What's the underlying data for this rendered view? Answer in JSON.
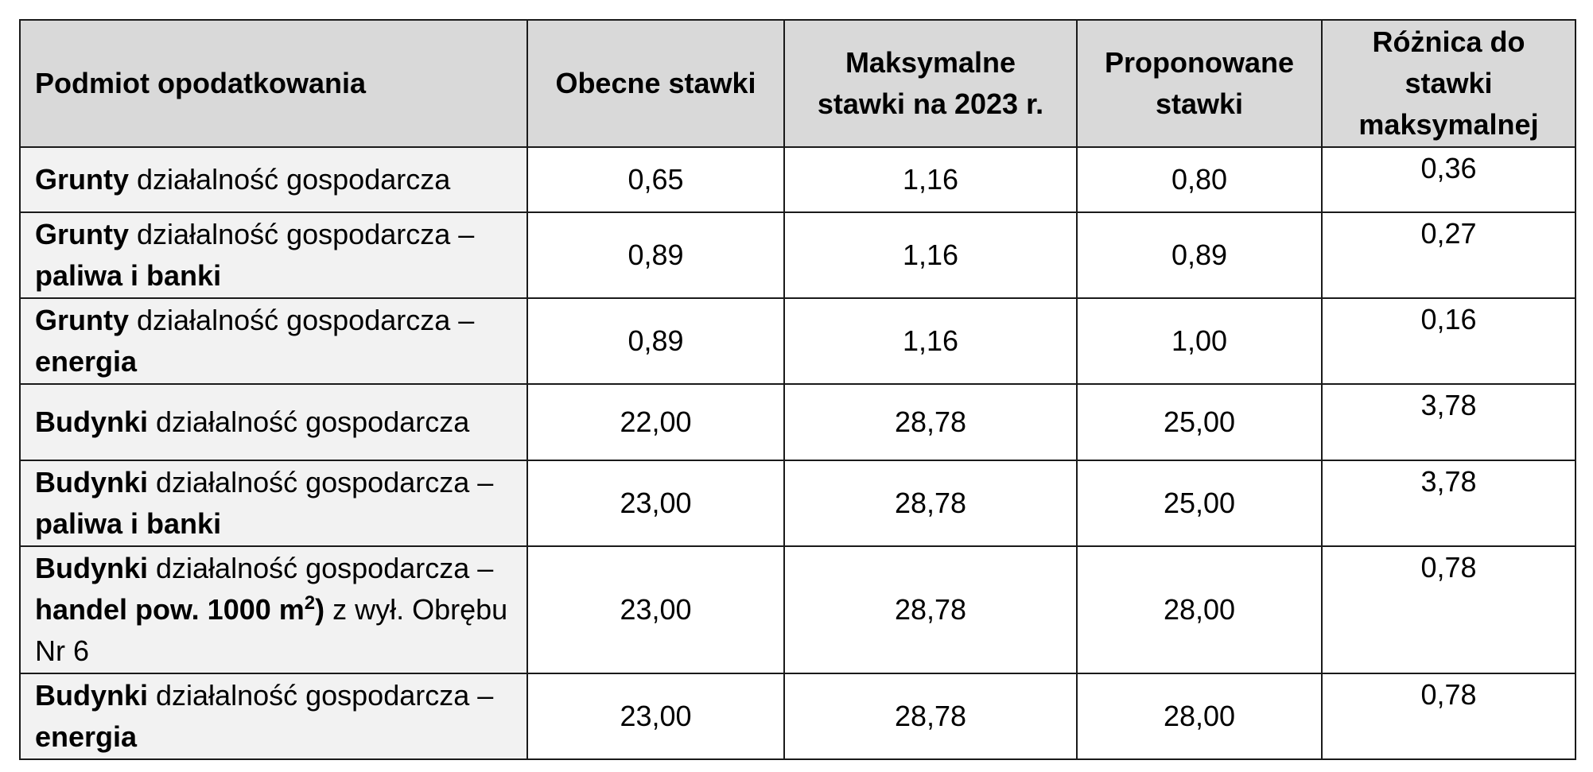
{
  "header": {
    "subject": "Podmiot opodatkowania",
    "current": "Obecne stawki",
    "max": "Maksymalne stawki na 2023 r.",
    "proposed": "Proponowane stawki",
    "diff": "Różnica do stawki maksymalnej"
  },
  "rows": [
    {
      "bold": "Grunty",
      "rest": " działalność gospodarcza",
      "bold2": "",
      "tail": "",
      "current": "0,65",
      "max": "1,16",
      "proposed": "0,80",
      "diff": "0,36"
    },
    {
      "bold": "Grunty",
      "rest": " działalność gospodarcza – ",
      "bold2": "paliwa i banki",
      "tail": "",
      "current": "0,89",
      "max": "1,16",
      "proposed": "0,89",
      "diff": "0,27"
    },
    {
      "bold": "Grunty",
      "rest": " działalność gospodarcza – ",
      "bold2": "energia",
      "tail": "",
      "current": "0,89",
      "max": "1,16",
      "proposed": "1,00",
      "diff": "0,16"
    },
    {
      "bold": "Budynki",
      "rest": " działalność gospodarcza",
      "bold2": "",
      "tail": "",
      "current": "22,00",
      "max": "28,78",
      "proposed": "25,00",
      "diff": "3,78"
    },
    {
      "bold": "Budynki",
      "rest": " działalność gospodarcza – ",
      "bold2": "paliwa i banki",
      "tail": "",
      "current": "23,00",
      "max": "28,78",
      "proposed": "25,00",
      "diff": "3,78"
    },
    {
      "bold": "Budynki",
      "rest": " działalność gospodarcza – ",
      "bold2": "handel pow. 1000 m",
      "sup": "2",
      "bold3": ")",
      "tail": " z wył. Obrębu Nr 6",
      "current": "23,00",
      "max": "28,78",
      "proposed": "28,00",
      "diff": "0,78"
    },
    {
      "bold": "Budynki",
      "rest": " działalność gospodarcza – ",
      "bold2": "energia",
      "tail": "",
      "current": "23,00",
      "max": "28,78",
      "proposed": "28,00",
      "diff": "0,78"
    }
  ]
}
